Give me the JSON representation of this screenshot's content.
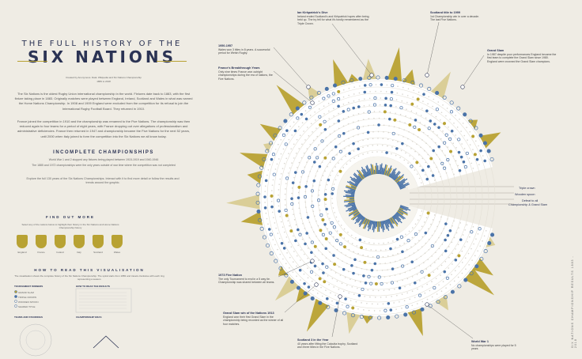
{
  "title": {
    "line1": "THE FULL HISTORY OF THE",
    "line2": "SIX NATIONS",
    "credit": "Created by Anonymous. Data: Wikipedia and Six Nations Championship",
    "years": "1883 to 2018"
  },
  "intro": {
    "p1": "The Six Nations is the oldest Rugby Union international championship in the world. Fixtures date back to 1883, with the first fixture taking place in 1883. Originally matches were played between England, Ireland, Scotland and Wales in what was named the Home Nations Championship. In 1908 and 1909 England were excluded from the competition for its refusal to join the International Rugby Football Board. They returned in 1910.",
    "p2": "France joined the competition in 1910 and the championship was renamed to the Five Nations. The championship was then reduced again to four teams for a period of eight years, with France dropping out over allegations of professionalism and administrative deficiencies. France then returned in 1947 and championship became the Five Nations for the next 52 years, until 2000 when Italy joined to form the competition into the Six Nations we all know today."
  },
  "incomplete": {
    "title": "INCOMPLETE CHAMPIONSHIPS",
    "line1": "World War 1 and 2 stopped any fixtures being played between 1915-1919 and 1940-1946",
    "line2": "The 1885 and 1972 championships were the only years outside of war time where the competition was not completed",
    "explore": "Explore the full 130 years of the Six Nations Championships. Interact with it to find more detail or follow the results and trends around the graphic."
  },
  "find_out_more": {
    "title": "FIND OUT MORE",
    "text": "Select any of the nations below to highlight their history in the Six Nations and Home Nations Championship history"
  },
  "nations": [
    "England",
    "France",
    "Ireland",
    "Italy",
    "Scotland",
    "Wales"
  ],
  "how_to_read": {
    "title": "HOW TO READ THIS VISUALISATION",
    "text": "The visualisation shows the complete history of the Six Nations Championship. The spiral starts from 1883 and travels clockwise with each ring representing a season.",
    "tournament_winners": "TOURNAMENT WINNERS",
    "how_to_read_score": "HOW TO READ THE RESULTS",
    "grand_slam": "GRAND SLAM",
    "triple_crown": "TRIPLE CROWN",
    "wooden_spoon": "WOODEN SPOON",
    "shared": "SHARED TITLE",
    "teams_standings": "TEAMS AND STANDINGS",
    "eras": "CHAMPIONSHIP ERAS"
  },
  "annotations": {
    "a1": {
      "title": "Ian Kirkpatrick's Dive",
      "text": "Ireland ended Scotland's and Kirkpatrick hopes after being held up. The try fell for what it's fondly remembered as the Triple Crown."
    },
    "a2": {
      "title": "Scotland title to 1999",
      "text": "1st Championship win in over a decade. The last Five Nations."
    },
    "a3": {
      "title": "Grand Slam",
      "text": "In 1987 despite poor performances England became the first team to complete the Grand Slam since 1980. England were crowned the Grand Slam champions."
    },
    "a4": {
      "title": "1950-1957",
      "text": "Wales won 3 titles in 8 years. A successful period for Welsh Rugby."
    },
    "a5": {
      "title": "France's Breakthrough Years",
      "text": "Only nine times France won outright championships during the era of nations, the Five Nations."
    },
    "a6": {
      "title": "1973 Five Nation",
      "text": "The only Tournament to end in a 5 way tie. Championship was shared between all teams."
    },
    "a7": {
      "title": "Grand Slam win of the Nations 1913",
      "text": "England won their first Grand Slam in the championship being recorded as the winner of all four matches."
    },
    "a8": {
      "title": "Scotland 3 in the Year",
      "text": "40 years after lifting the Calcutta trophy, Scotland won three titles in the Five Nations."
    },
    "a9": {
      "title": "World War 1",
      "text": "No championships were played for 5 years"
    }
  },
  "legend": {
    "triple_crown": "Triple crown",
    "wooden_spoon": "Wooden spoon",
    "championship_grand_slam": "Championship & Grand Slam",
    "defeat_all": "Defeat to all"
  },
  "side_text": "SIX NATIONS CHAMPIONSHIP RESULTS 1883 - 2018",
  "colors": {
    "gold": "#b8a233",
    "navy": "#2b3354",
    "blue": "#4a73a8",
    "background": "#efece4",
    "ring": "#ffffff"
  }
}
